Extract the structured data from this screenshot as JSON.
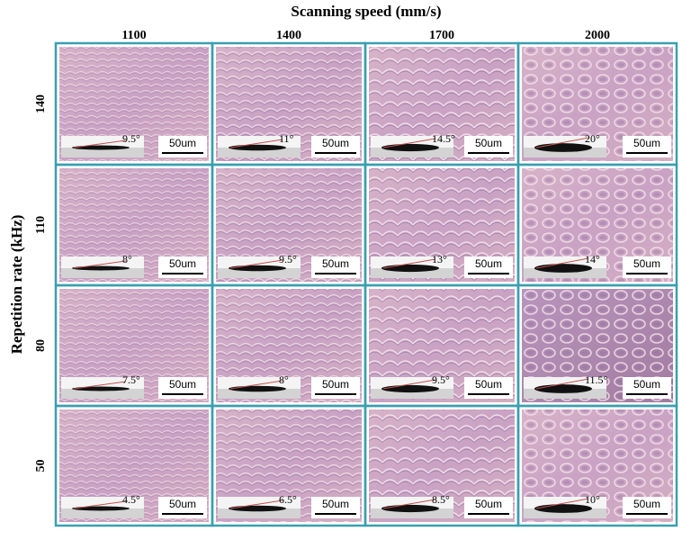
{
  "x_axis_title": "Scanning speed (mm/s)",
  "columns": [
    "1100",
    "1400",
    "1700",
    "2000"
  ],
  "y_axis_title": "Repetition rate (kHz)",
  "rows": [
    "140",
    "110",
    "80",
    "50"
  ],
  "scale_bar": "50um",
  "contact_angles": [
    [
      "9.5°",
      "11°",
      "14.5°",
      "20°"
    ],
    [
      "8°",
      "9.5°",
      "13°",
      "14°"
    ],
    [
      "7.5°",
      "8°",
      "9.5°",
      "11.5°"
    ],
    [
      "4.5°",
      "6.5°",
      "8.5°",
      "10°"
    ]
  ]
}
